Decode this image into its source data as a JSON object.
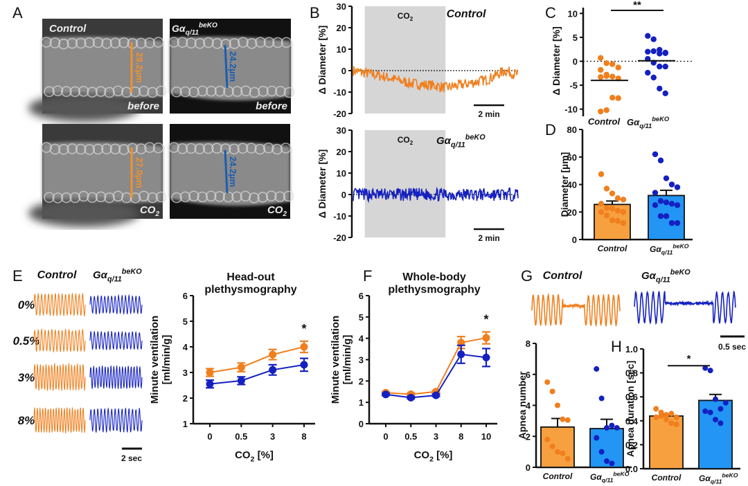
{
  "colors": {
    "control": "#f07f1d",
    "control_bar": "#f7a040",
    "ko": "#1420c0",
    "ko_bar": "#2295f5",
    "shade": "#d6d6d6",
    "micro_control": "#f2902a",
    "micro_ko": "#1a5db0"
  },
  "groups": {
    "control": "Control",
    "ko_base": "Gα",
    "ko_sub": "q/11",
    "ko_sup": "beKO"
  },
  "panel_labels": [
    "A",
    "B",
    "C",
    "D",
    "E",
    "F",
    "G",
    "H"
  ],
  "panel_a": {
    "images": [
      {
        "group": "Control",
        "condition": "before",
        "measure": "29.2µm"
      },
      {
        "group": "Gαq/11 beKO",
        "condition": "before",
        "measure": "24.2µm"
      },
      {
        "group": "Control",
        "condition": "CO2",
        "measure": "27.0µm"
      },
      {
        "group": "Gαq/11 beKO",
        "condition": "CO2",
        "measure": "24.2µm"
      }
    ],
    "cond_before": "before",
    "cond_co2": "CO",
    "cond_co2_sub": "2"
  },
  "chart_data": [
    {
      "id": "B-top",
      "type": "line",
      "title": "Control",
      "ylabel": "Δ Diameter [%]",
      "ylim": [
        -20,
        30
      ],
      "yticks": [
        30,
        20,
        10,
        0,
        -10,
        -20
      ],
      "shade_label": "CO2",
      "shade_range_fraction": [
        0.07,
        0.56
      ],
      "scalebar": "2 min",
      "baseline": 0,
      "series": [
        {
          "name": "Control",
          "trend_points": [
            [
              0,
              0
            ],
            [
              0.07,
              -1
            ],
            [
              0.2,
              -3
            ],
            [
              0.35,
              -6
            ],
            [
              0.5,
              -7
            ],
            [
              0.56,
              -8
            ],
            [
              0.7,
              -6
            ],
            [
              0.82,
              -4
            ],
            [
              0.92,
              0
            ],
            [
              1,
              -2
            ]
          ],
          "noise": 2.5
        }
      ]
    },
    {
      "id": "B-bottom",
      "type": "line",
      "title": "Gαq/11 beKO",
      "ylabel": "Δ Diameter [%]",
      "ylim": [
        -20,
        30
      ],
      "yticks": [
        30,
        20,
        10,
        0,
        -10,
        -20
      ],
      "shade_label": "CO2",
      "shade_range_fraction": [
        0.07,
        0.56
      ],
      "scalebar": "2 min",
      "baseline": 0,
      "series": [
        {
          "name": "Gαq/11 beKO",
          "trend_points": [
            [
              0,
              0
            ],
            [
              1,
              0
            ]
          ],
          "noise": 3
        }
      ]
    },
    {
      "id": "C",
      "type": "scatter",
      "ylabel": "Δ Diameter [%]",
      "ylim": [
        -11,
        11
      ],
      "yticks": [
        10,
        5,
        0,
        -5,
        -10
      ],
      "categories": [
        "Control",
        "Gαq/11 beKO"
      ],
      "significance": "**",
      "means": [
        -4,
        0.1
      ],
      "points": [
        [
          0.7,
          -0.4,
          -0.6,
          -1.3,
          -1.8,
          -2.8,
          -3.2,
          -3.6,
          -3.3,
          -3.1,
          -7.6,
          -7.7,
          -10.5,
          -10.2
        ],
        [
          5.3,
          4.6,
          2.4,
          1.8,
          2.0,
          2.1,
          1.6,
          1.7,
          0.5,
          -0.3,
          -1.1,
          -1.1,
          -2.4,
          -3.4,
          -5.7,
          -6.7
        ]
      ]
    },
    {
      "id": "D",
      "type": "bar",
      "ylabel": "Diameter [µm]",
      "ylim": [
        0,
        80
      ],
      "yticks": [
        0,
        20,
        40,
        60,
        80
      ],
      "categories": [
        "Control",
        "Gαq/11 beKO"
      ],
      "values": [
        25.5,
        32
      ],
      "errors": [
        2.5,
        3.8
      ],
      "points": [
        [
          47.5,
          37,
          33.5,
          30,
          29,
          26,
          23,
          22.5,
          21,
          20,
          20,
          17.5,
          14,
          13.5,
          12
        ],
        [
          62,
          57.5,
          44.5,
          40,
          38,
          34,
          28,
          27,
          26,
          25,
          25,
          17,
          17,
          12,
          12
        ]
      ]
    },
    {
      "id": "E",
      "type": "line",
      "title": "Head-out plethysmography",
      "xlabel": "CO2 [%]",
      "ylabel": "Minute ventilation [ml/min/g]",
      "ylim": [
        1,
        6
      ],
      "yticks": [
        1,
        2,
        3,
        4,
        5,
        6
      ],
      "categories": [
        "0",
        "0.5",
        "3",
        "8"
      ],
      "annotation": "*",
      "annotation_at": "8",
      "series": [
        {
          "name": "Control",
          "values": [
            3.0,
            3.2,
            3.7,
            4.0
          ],
          "errors": [
            0.15,
            0.17,
            0.2,
            0.22
          ]
        },
        {
          "name": "Gαq/11 beKO",
          "values": [
            2.55,
            2.68,
            3.1,
            3.3
          ],
          "errors": [
            0.15,
            0.15,
            0.2,
            0.25
          ]
        }
      ]
    },
    {
      "id": "F",
      "type": "line",
      "title": "Whole-body plethysmography",
      "xlabel": "CO2 [%]",
      "ylabel": "Minute ventilation [ml/min/g]",
      "ylim": [
        0,
        6
      ],
      "yticks": [
        0,
        1,
        2,
        3,
        4,
        5,
        6
      ],
      "categories": [
        "0",
        "0.5",
        "3",
        "8",
        "10"
      ],
      "annotation": "*",
      "annotation_at": "10",
      "series": [
        {
          "name": "Control",
          "values": [
            1.45,
            1.38,
            1.5,
            3.8,
            4.02
          ],
          "errors": [
            0.05,
            0.05,
            0.05,
            0.28,
            0.28
          ]
        },
        {
          "name": "Gαq/11 beKO",
          "values": [
            1.37,
            1.22,
            1.33,
            3.25,
            3.1
          ],
          "errors": [
            0.05,
            0.05,
            0.05,
            0.42,
            0.42
          ]
        }
      ]
    },
    {
      "id": "G",
      "type": "bar",
      "ylabel": "Apnea number",
      "ylim": [
        0,
        8
      ],
      "yticks": [
        0,
        2,
        4,
        6,
        8
      ],
      "categories": [
        "Control",
        "Gαq/11 beKO"
      ],
      "values": [
        2.6,
        2.5
      ],
      "errors": [
        0.55,
        0.6
      ],
      "points": [
        [
          5.5,
          4.9,
          4.0,
          3.1,
          3.05,
          1.8,
          1.35,
          1.0,
          0.9,
          0.55
        ],
        [
          6.35,
          4.45,
          2.55,
          2.7,
          2.55,
          1.9,
          1.0,
          0.4,
          0.25
        ]
      ]
    },
    {
      "id": "H",
      "type": "bar",
      "ylabel": "Apnea duration [sec]",
      "ylim": [
        0,
        1.0
      ],
      "yticks": [
        0.0,
        0.2,
        0.4,
        0.6,
        0.8,
        1.0
      ],
      "categories": [
        "Control",
        "Gαq/11 beKO"
      ],
      "values": [
        0.44,
        0.57
      ],
      "errors": [
        0.015,
        0.05
      ],
      "significance": "*",
      "points": [
        [
          0.5,
          0.47,
          0.45,
          0.46,
          0.43,
          0.43,
          0.44,
          0.41,
          0.38,
          0.37
        ],
        [
          0.84,
          0.82,
          0.58,
          0.5,
          0.55,
          0.48,
          0.47,
          0.41,
          0.38
        ]
      ]
    }
  ],
  "panel_e_traces": {
    "rows": [
      "0%",
      "0.5%",
      "3%",
      "8%"
    ],
    "scalebar": "2 sec"
  },
  "panel_g_traces": {
    "scalebar": "0.5 sec"
  },
  "axis_text": {
    "b_ylabel": "Δ Diameter [%]",
    "c_ylabel": "Δ Diameter [%]",
    "d_ylabel": "Diameter [µm]",
    "e_ylabel1": "Minute ventilation",
    "e_ylabel2": "[ml/min/g]",
    "co2_x": "CO",
    "co2_x_sub": "2",
    "co2_x_unit": " [%]",
    "e_title1": "Head-out",
    "e_title2": "plethysmography",
    "f_title1": "Whole-body",
    "f_title2": "plethysmography",
    "g_ylabel": "Apnea number",
    "h_ylabel": "Apnea duration [sec]",
    "co2_box": "CO",
    "co2_box_sub": "2",
    "b_top_title": "Control",
    "scale_2min": "2 min"
  }
}
